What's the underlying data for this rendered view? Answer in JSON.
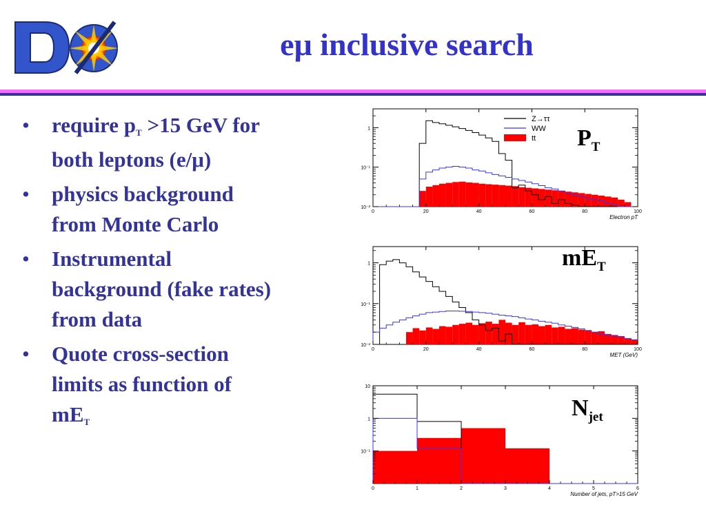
{
  "slide": {
    "logo": {
      "text": "DØ",
      "icon": "dzero-logo-icon"
    },
    "title": "eμ inclusive search",
    "bullets": [
      {
        "lines": [
          {
            "a": "require p",
            "sub": "T",
            "b": " >15 GeV for"
          },
          {
            "a": "both leptons (e/μ)"
          }
        ]
      },
      {
        "lines": [
          {
            "a": "physics background"
          },
          {
            "a": "from Monte Carlo"
          }
        ]
      },
      {
        "lines": [
          {
            "a": "Instrumental"
          },
          {
            "a": "background (fake rates)"
          },
          {
            "a": "from data"
          }
        ]
      },
      {
        "lines": [
          {
            "a": "Quote cross-section"
          },
          {
            "a": "limits as function of"
          },
          {
            "a": "mE",
            "sub": "T"
          }
        ]
      }
    ]
  },
  "overlays": {
    "pt": {
      "main": "P",
      "sub": "T"
    },
    "met": {
      "main": "mE",
      "sub": "T"
    },
    "njet": {
      "main": "N",
      "sub": "jet"
    }
  },
  "colors": {
    "title": "#3333cc",
    "bullet_text": "#333399",
    "band_pink": "#ff66ff",
    "band_navy": "#333399",
    "ztautau": "#000000",
    "ww": "#3333ff",
    "ttbar": "#ff0000"
  },
  "chart_data": [
    {
      "type": "bar",
      "id": "electron-pt",
      "xlabel": "Electron pT",
      "ylabel": "",
      "xlim": [
        0,
        100
      ],
      "ylim": [
        0.01,
        3
      ],
      "yscale": "log",
      "xticks": [
        "0",
        "20",
        "40",
        "60",
        "80",
        "100"
      ],
      "yticks": [
        {
          "v": 1,
          "label": "1"
        },
        {
          "v": 0.1,
          "label": "10⁻¹"
        },
        {
          "v": 0.01,
          "label": "10⁻²"
        }
      ],
      "legend_position": "top-right",
      "legend": [
        {
          "label": "Z→ττ",
          "style": "line",
          "color": "#000000"
        },
        {
          "label": "WW",
          "style": "line",
          "color": "#3333ff"
        },
        {
          "label": "tt",
          "style": "fill",
          "color": "#ff0000"
        }
      ],
      "bin_width": 2.5,
      "series": [
        {
          "name": "Z→ττ",
          "style": "step",
          "color": "#000000",
          "x_start": 0,
          "values": [
            0,
            0,
            0,
            0,
            0,
            0,
            0.01,
            0.4,
            1.5,
            1.35,
            1.25,
            1.15,
            1.05,
            0.95,
            0.85,
            0.75,
            0.65,
            0.55,
            0.45,
            0.22,
            0.15,
            0.03,
            0.035,
            0.025,
            0.02,
            0.015,
            0.018,
            0.012,
            0.015,
            0.012,
            0.011,
            0.01,
            0.01,
            0.01,
            0.01,
            0.01,
            0.01,
            0.01,
            0.01,
            0.01
          ]
        },
        {
          "name": "WW",
          "style": "step",
          "color": "#3333ff",
          "x_start": 0,
          "values": [
            0,
            0,
            0,
            0,
            0,
            0,
            0.01,
            0.05,
            0.075,
            0.085,
            0.095,
            0.1,
            0.105,
            0.1,
            0.095,
            0.085,
            0.08,
            0.072,
            0.065,
            0.06,
            0.055,
            0.05,
            0.046,
            0.042,
            0.038,
            0.034,
            0.03,
            0.028,
            0.025,
            0.022,
            0.02,
            0.018,
            0.016,
            0.015,
            0.014,
            0.012,
            0.011,
            0.01,
            0.01,
            0.01
          ]
        },
        {
          "name": "tt",
          "style": "fill",
          "color": "#ff0000",
          "x_start": 0,
          "values": [
            0,
            0,
            0,
            0,
            0,
            0,
            0,
            0.025,
            0.032,
            0.035,
            0.038,
            0.04,
            0.042,
            0.043,
            0.041,
            0.04,
            0.038,
            0.037,
            0.036,
            0.035,
            0.034,
            0.033,
            0.031,
            0.03,
            0.029,
            0.028,
            0.027,
            0.026,
            0.025,
            0.024,
            0.023,
            0.022,
            0.021,
            0.02,
            0.019,
            0.018,
            0.017,
            0.015,
            0.013,
            0.01
          ]
        }
      ]
    },
    {
      "type": "bar",
      "id": "met",
      "xlabel": "MET (GeV)",
      "ylabel": "",
      "xlim": [
        0,
        100
      ],
      "ylim": [
        0.01,
        2.5
      ],
      "yscale": "log",
      "xticks": [
        "0",
        "20",
        "40",
        "60",
        "80",
        "100"
      ],
      "yticks": [
        {
          "v": 1,
          "label": "1"
        },
        {
          "v": 0.1,
          "label": "10⁻¹"
        },
        {
          "v": 0.01,
          "label": "10⁻²"
        }
      ],
      "legend_position": "none",
      "legend": [],
      "bin_width": 2.5,
      "series": [
        {
          "name": "Z→ττ",
          "style": "step",
          "color": "#000000",
          "x_start": 0,
          "values": [
            0,
            0.9,
            1.1,
            1.2,
            1.0,
            0.8,
            0.6,
            0.45,
            0.35,
            0.26,
            0.2,
            0.15,
            0.11,
            0.08,
            0.06,
            0.04,
            0.03,
            0.022,
            0.025,
            0.012,
            0.018,
            0.01,
            0.01,
            0.01,
            0.01,
            0.01,
            0.01,
            0.01,
            0.01,
            0.01,
            0.01,
            0.01,
            0.01,
            0.01,
            0.01,
            0.01,
            0.01,
            0.01,
            0.01,
            0.01
          ]
        },
        {
          "name": "WW",
          "style": "step",
          "color": "#3333ff",
          "x_start": 0,
          "values": [
            0.02,
            0.025,
            0.03,
            0.035,
            0.04,
            0.045,
            0.05,
            0.055,
            0.06,
            0.062,
            0.064,
            0.066,
            0.066,
            0.065,
            0.064,
            0.062,
            0.06,
            0.058,
            0.055,
            0.052,
            0.05,
            0.048,
            0.045,
            0.042,
            0.04,
            0.037,
            0.035,
            0.033,
            0.03,
            0.028,
            0.026,
            0.024,
            0.022,
            0.02,
            0.018,
            0.017,
            0.016,
            0.015,
            0.014,
            0.013
          ]
        },
        {
          "name": "tt",
          "style": "fill",
          "color": "#ff0000",
          "x_start": 0,
          "values": [
            0,
            0,
            0,
            0,
            0,
            0.02,
            0.025,
            0.022,
            0.026,
            0.024,
            0.028,
            0.027,
            0.03,
            0.032,
            0.034,
            0.03,
            0.033,
            0.036,
            0.032,
            0.04,
            0.034,
            0.03,
            0.035,
            0.03,
            0.031,
            0.028,
            0.03,
            0.026,
            0.027,
            0.024,
            0.025,
            0.023,
            0.022,
            0.02,
            0.021,
            0.018,
            0.017,
            0.016,
            0.014,
            0.013
          ]
        }
      ]
    },
    {
      "type": "bar",
      "id": "njet",
      "xlabel": "Number of jets, pT>15 GeV",
      "ylabel": "",
      "xlim": [
        0,
        6
      ],
      "ylim": [
        0.01,
        10
      ],
      "yscale": "log",
      "xticks": [
        "0",
        "1",
        "2",
        "3",
        "4",
        "5",
        "6"
      ],
      "yticks": [
        {
          "v": 10,
          "label": "10"
        },
        {
          "v": 1,
          "label": "1"
        },
        {
          "v": 0.1,
          "label": "10⁻¹"
        }
      ],
      "legend_position": "none",
      "legend": [],
      "bin_width": 1,
      "series": [
        {
          "name": "Z→ττ",
          "style": "step",
          "color": "#000000",
          "x_start": 0,
          "values": [
            5.5,
            0.8,
            0.01,
            0.01,
            0.01,
            0.01
          ]
        },
        {
          "name": "WW",
          "style": "step",
          "color": "#3333ff",
          "x_start": 0,
          "values": [
            1.0,
            0.12,
            0.01,
            0.01,
            0.01,
            0.01
          ]
        },
        {
          "name": "tt",
          "style": "fill",
          "color": "#ff0000",
          "x_start": 0,
          "values": [
            0.1,
            0.25,
            0.5,
            0.12,
            0.01,
            0.01
          ]
        }
      ]
    }
  ]
}
